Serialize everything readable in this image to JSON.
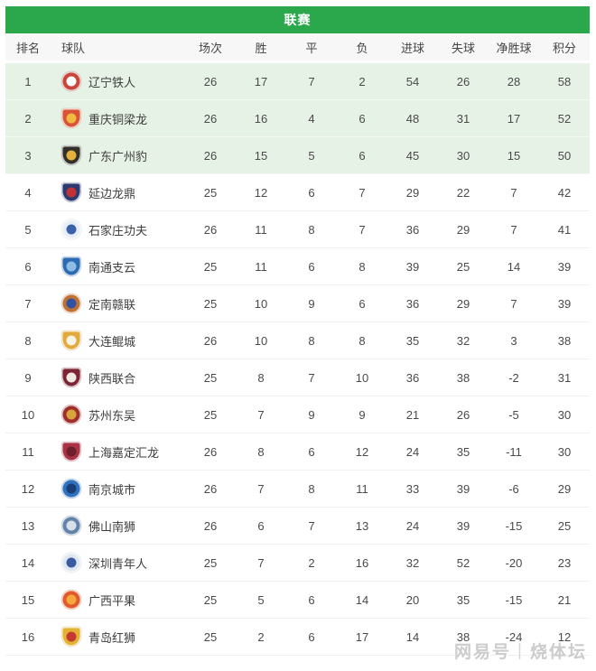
{
  "header": {
    "title": "联赛"
  },
  "colors": {
    "header_green": "#2aa84b",
    "top_rows_bg": "#e6f2e5",
    "header_row_bg": "#f7f7f7",
    "body_text": "#4a4a4a",
    "watermark_gray": "#cccccc"
  },
  "watermark": {
    "brand": "网易号",
    "divider": "|",
    "name": "烧体坛"
  },
  "table": {
    "columns": [
      "排名",
      "球队",
      "场次",
      "胜",
      "平",
      "负",
      "进球",
      "失球",
      "净胜球",
      "积分"
    ],
    "highlight_top_count": 3,
    "rows": [
      {
        "rank": "1",
        "team": "辽宁铁人",
        "played": "26",
        "win": "17",
        "draw": "7",
        "loss": "2",
        "gf": "54",
        "ga": "26",
        "gd": "28",
        "pts": "58",
        "logo": {
          "shape": "circle",
          "primary": "#c9453b",
          "secondary": "#ffffff"
        }
      },
      {
        "rank": "2",
        "team": "重庆铜梁龙",
        "played": "26",
        "win": "16",
        "draw": "4",
        "loss": "6",
        "gf": "48",
        "ga": "31",
        "gd": "17",
        "pts": "52",
        "logo": {
          "shape": "shield",
          "primary": "#d95436",
          "secondary": "#f1b93f"
        }
      },
      {
        "rank": "3",
        "team": "广东广州豹",
        "played": "26",
        "win": "15",
        "draw": "5",
        "loss": "6",
        "gf": "45",
        "ga": "30",
        "gd": "15",
        "pts": "50",
        "logo": {
          "shape": "shield",
          "primary": "#32302a",
          "secondary": "#e3b23a"
        }
      },
      {
        "rank": "4",
        "team": "延边龙鼎",
        "played": "25",
        "win": "12",
        "draw": "6",
        "loss": "7",
        "gf": "29",
        "ga": "22",
        "gd": "7",
        "pts": "42",
        "logo": {
          "shape": "shield",
          "primary": "#2c3a72",
          "secondary": "#c03335"
        }
      },
      {
        "rank": "5",
        "team": "石家庄功夫",
        "played": "26",
        "win": "11",
        "draw": "8",
        "loss": "7",
        "gf": "36",
        "ga": "29",
        "gd": "7",
        "pts": "41",
        "logo": {
          "shape": "circle",
          "primary": "#e8eef7",
          "secondary": "#3b62a8"
        }
      },
      {
        "rank": "6",
        "team": "南通支云",
        "played": "25",
        "win": "11",
        "draw": "6",
        "loss": "8",
        "gf": "39",
        "ga": "25",
        "gd": "14",
        "pts": "39",
        "logo": {
          "shape": "shield",
          "primary": "#2d6cb3",
          "secondary": "#8fbce4"
        }
      },
      {
        "rank": "7",
        "team": "定南赣联",
        "played": "25",
        "win": "10",
        "draw": "9",
        "loss": "6",
        "gf": "36",
        "ga": "29",
        "gd": "7",
        "pts": "39",
        "logo": {
          "shape": "circle",
          "primary": "#bf7034",
          "secondary": "#31529e"
        }
      },
      {
        "rank": "8",
        "team": "大连鲲城",
        "played": "26",
        "win": "10",
        "draw": "8",
        "loss": "8",
        "gf": "35",
        "ga": "32",
        "gd": "3",
        "pts": "38",
        "logo": {
          "shape": "shield",
          "primary": "#e2aa3c",
          "secondary": "#f7f3e6"
        }
      },
      {
        "rank": "9",
        "team": "陕西联合",
        "played": "25",
        "win": "8",
        "draw": "7",
        "loss": "10",
        "gf": "36",
        "ga": "38",
        "gd": "-2",
        "pts": "31",
        "logo": {
          "shape": "shield",
          "primary": "#7c2433",
          "secondary": "#f0e9e3"
        }
      },
      {
        "rank": "10",
        "team": "苏州东吴",
        "played": "25",
        "win": "7",
        "draw": "9",
        "loss": "9",
        "gf": "21",
        "ga": "26",
        "gd": "-5",
        "pts": "30",
        "logo": {
          "shape": "circle",
          "primary": "#9e2f2d",
          "secondary": "#d8a43c"
        }
      },
      {
        "rank": "11",
        "team": "上海嘉定汇龙",
        "played": "26",
        "win": "8",
        "draw": "6",
        "loss": "12",
        "gf": "24",
        "ga": "35",
        "gd": "-11",
        "pts": "30",
        "logo": {
          "shape": "shield",
          "primary": "#aa3246",
          "secondary": "#6e1f2c"
        }
      },
      {
        "rank": "12",
        "team": "南京城市",
        "played": "26",
        "win": "7",
        "draw": "8",
        "loss": "11",
        "gf": "33",
        "ga": "39",
        "gd": "-6",
        "pts": "29",
        "logo": {
          "shape": "circle",
          "primary": "#2f71bd",
          "secondary": "#1c3e77"
        }
      },
      {
        "rank": "13",
        "team": "佛山南狮",
        "played": "26",
        "win": "6",
        "draw": "7",
        "loss": "13",
        "gf": "24",
        "ga": "39",
        "gd": "-15",
        "pts": "25",
        "logo": {
          "shape": "circle",
          "primary": "#6483a8",
          "secondary": "#d7e0ea"
        }
      },
      {
        "rank": "14",
        "team": "深圳青年人",
        "played": "25",
        "win": "7",
        "draw": "2",
        "loss": "16",
        "gf": "32",
        "ga": "52",
        "gd": "-20",
        "pts": "23",
        "logo": {
          "shape": "circle",
          "primary": "#dfe7f2",
          "secondary": "#3a5ba0"
        }
      },
      {
        "rank": "15",
        "team": "广西平果",
        "played": "25",
        "win": "5",
        "draw": "6",
        "loss": "14",
        "gf": "20",
        "ga": "35",
        "gd": "-15",
        "pts": "21",
        "logo": {
          "shape": "circle",
          "primary": "#e25a2b",
          "secondary": "#f3a93e"
        }
      },
      {
        "rank": "16",
        "team": "青岛红狮",
        "played": "25",
        "win": "2",
        "draw": "6",
        "loss": "17",
        "gf": "14",
        "ga": "38",
        "gd": "-24",
        "pts": "12",
        "logo": {
          "shape": "shield",
          "primary": "#e3b232",
          "secondary": "#c23a30"
        }
      }
    ]
  }
}
